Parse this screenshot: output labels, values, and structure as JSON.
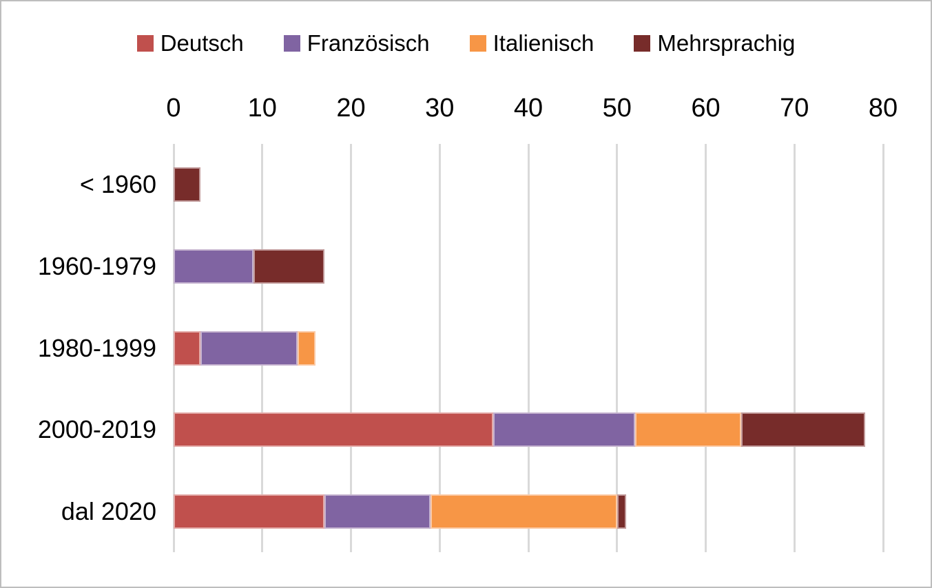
{
  "chart_data": {
    "type": "bar",
    "orientation": "horizontal",
    "stacked": true,
    "title": "",
    "xlabel": "",
    "ylabel": "",
    "categories": [
      "< 1960",
      "1960-1979",
      "1980-1999",
      "2000-2019",
      "dal 2020"
    ],
    "series": [
      {
        "name": "Deutsch",
        "color": "#C0504D",
        "values": [
          0,
          0,
          3,
          36,
          17
        ]
      },
      {
        "name": "Französisch",
        "color": "#8064A2",
        "values": [
          0,
          9,
          11,
          16,
          12
        ]
      },
      {
        "name": "Italienisch",
        "color": "#F79646",
        "values": [
          0,
          0,
          2,
          12,
          21
        ]
      },
      {
        "name": "Mehrsprachig",
        "color": "#772C2A",
        "values": [
          3,
          8,
          0,
          14,
          1
        ]
      }
    ],
    "totals_by_category": [
      3,
      17,
      16,
      78,
      51
    ],
    "xlim": [
      0,
      80
    ],
    "xticks": [
      0,
      10,
      20,
      30,
      40,
      50,
      60,
      70,
      80
    ],
    "tick_label_position": "top",
    "grid": true,
    "gridline_color": "#D9D9D9",
    "legend_position": "top",
    "figure_border_color": "#BDBDBD",
    "text_color": "#000000"
  }
}
